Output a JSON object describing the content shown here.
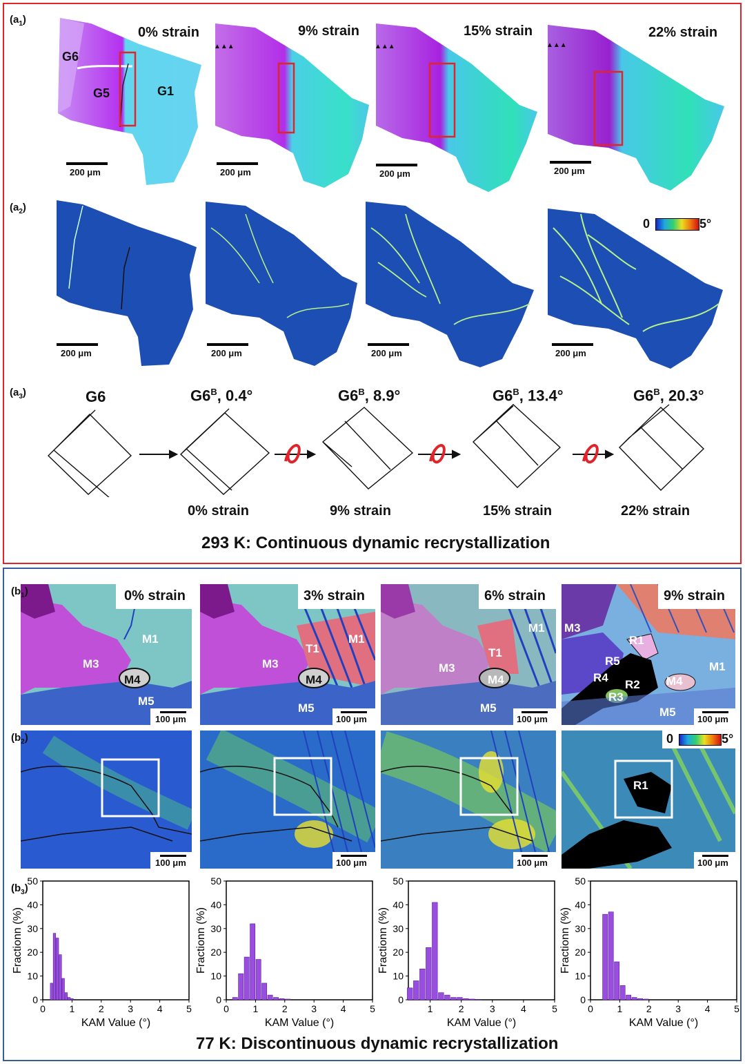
{
  "panel_a": {
    "labels": {
      "a1": "(a",
      "a1_sub": "1",
      "a2": "(a",
      "a2_sub": "2",
      "a3": "(a",
      "a3_sub": "3",
      "close": ")"
    },
    "strains_a1": [
      "0% strain",
      "9% strain",
      "15% strain",
      "22% strain"
    ],
    "scale": "200 μm",
    "grain_labels": {
      "g6": "G6",
      "g5": "G5",
      "g1": "G1"
    },
    "kam_scale": {
      "min": "0",
      "max": "5°"
    },
    "cube_headings": [
      {
        "base": "G6",
        "sup": "",
        "rest": ""
      },
      {
        "base": "G6",
        "sup": "B",
        "rest": ", 0.4°"
      },
      {
        "base": "G6",
        "sup": "B",
        "rest": ", 8.9°"
      },
      {
        "base": "G6",
        "sup": "B",
        "rest": ", 13.4°"
      },
      {
        "base": "G6",
        "sup": "B",
        "rest": ", 20.3°"
      }
    ],
    "cube_strains": [
      "0% strain",
      "9% strain",
      "15% strain",
      "22% strain"
    ],
    "caption": "293 K: Continuous dynamic recrystallization"
  },
  "panel_b": {
    "labels": {
      "b1": "(b",
      "b1_sub": "1",
      "b2": "(b",
      "b2_sub": "2",
      "b3": "(b",
      "b3_sub": "3",
      "close": ")"
    },
    "strains_b1": [
      "0% strain",
      "3% strain",
      "6% strain",
      "9% strain"
    ],
    "scale": "100 μm",
    "tile1_labels": {
      "m1": "M1",
      "m3": "M3",
      "m4": "M4",
      "m5": "M5"
    },
    "tile2_labels": {
      "m1": "M1",
      "m3": "M3",
      "m4": "M4",
      "m5": "M5",
      "t1": "T1"
    },
    "tile3_labels": {
      "m1": "M1",
      "m3": "M3",
      "m4": "M4",
      "m5": "M5",
      "t1": "T1"
    },
    "tile4_labels": {
      "m1": "M1",
      "m3": "M3",
      "m4": "M4",
      "m5": "M5",
      "r1": "R1",
      "r2": "R2",
      "r3": "R3",
      "r4": "R4",
      "r5": "R5"
    },
    "kam_scale": {
      "min": "0",
      "max": "5°"
    },
    "b2_r1": "R1",
    "caption": "77 K: Discontinuous dynamic recrystallization"
  },
  "chart_data": [
    {
      "type": "bar",
      "title": "",
      "xlabel": "KAM Value (°)",
      "ylabel": "Fractionn (%)",
      "xlim": [
        0,
        5
      ],
      "ylim": [
        0,
        50
      ],
      "xticks": [
        "0",
        "1",
        "2",
        "3",
        "4",
        "5"
      ],
      "yticks": [
        "0",
        "10",
        "20",
        "30",
        "40",
        "50"
      ],
      "x": [
        0.3,
        0.4,
        0.5,
        0.6,
        0.7,
        0.8,
        0.9,
        1.0
      ],
      "values": [
        7,
        28,
        26,
        19,
        9,
        3,
        1,
        0.5
      ],
      "color": "#9a4ee0"
    },
    {
      "type": "bar",
      "title": "",
      "xlabel": "KAM Value (°)",
      "ylabel": "Fractionn (%)",
      "xlim": [
        0,
        5
      ],
      "ylim": [
        0,
        50
      ],
      "xticks": [
        "0",
        "1",
        "2",
        "3",
        "4",
        "5"
      ],
      "yticks": [
        "0",
        "10",
        "20",
        "30",
        "40",
        "50"
      ],
      "x": [
        0.3,
        0.5,
        0.7,
        0.9,
        1.1,
        1.3,
        1.5,
        1.7,
        1.9,
        2.1
      ],
      "values": [
        1,
        11,
        18,
        32,
        17,
        7,
        2,
        1,
        0.5,
        0.3
      ],
      "color": "#9a4ee0"
    },
    {
      "type": "bar",
      "title": "",
      "xlabel": "KAM Value (°)",
      "ylabel": "Fractionn (%)",
      "xlim": [
        0.3,
        5
      ],
      "ylim": [
        0,
        50
      ],
      "xticks": [
        "1",
        "2",
        "3",
        "4",
        "5"
      ],
      "yticks": [
        "0",
        "10",
        "20",
        "30",
        "40",
        "50"
      ],
      "x": [
        0.35,
        0.55,
        0.75,
        0.95,
        1.15,
        1.35,
        1.55,
        1.75,
        1.95,
        2.15,
        2.35,
        2.55
      ],
      "values": [
        5,
        8,
        13,
        22,
        41,
        3,
        2,
        1,
        1,
        0.5,
        0.3,
        0.2
      ],
      "color": "#9a4ee0"
    },
    {
      "type": "bar",
      "title": "",
      "xlabel": "KAM Value (°)",
      "ylabel": "Fractionn (%)",
      "xlim": [
        0,
        5
      ],
      "ylim": [
        0,
        50
      ],
      "xticks": [
        "0",
        "1",
        "2",
        "3",
        "4",
        "5"
      ],
      "yticks": [
        "0",
        "10",
        "20",
        "30",
        "40",
        "50"
      ],
      "x": [
        0.3,
        0.5,
        0.7,
        0.9,
        1.1,
        1.3,
        1.5,
        1.7,
        1.9
      ],
      "values": [
        0,
        36,
        37,
        16,
        6,
        2,
        1,
        0.5,
        0.3
      ],
      "color": "#9a4ee0"
    }
  ]
}
